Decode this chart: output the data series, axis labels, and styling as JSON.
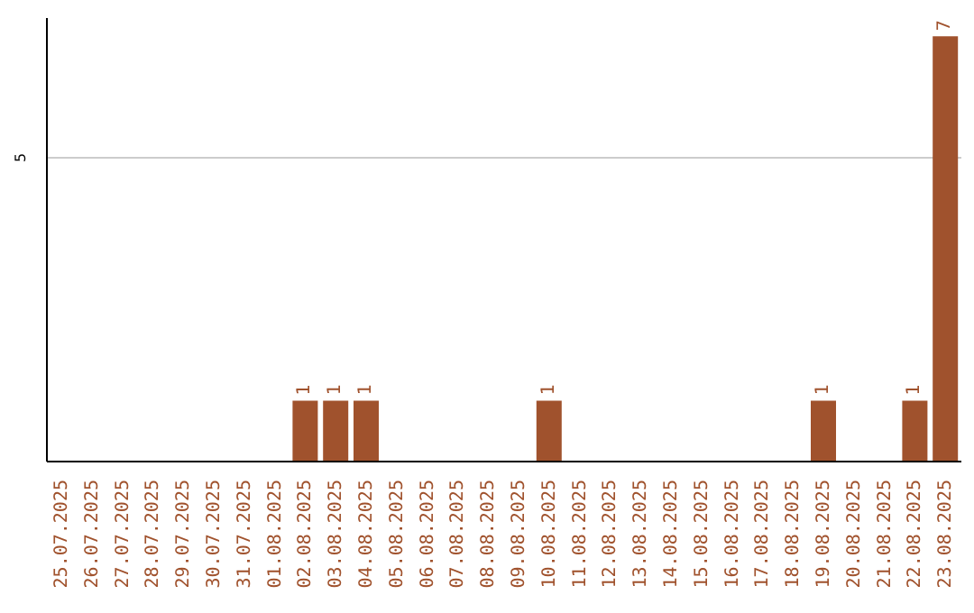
{
  "chart_data": {
    "type": "bar",
    "categories": [
      "25.07.2025",
      "26.07.2025",
      "27.07.2025",
      "28.07.2025",
      "29.07.2025",
      "30.07.2025",
      "31.07.2025",
      "01.08.2025",
      "02.08.2025",
      "03.08.2025",
      "04.08.2025",
      "05.08.2025",
      "06.08.2025",
      "07.08.2025",
      "08.08.2025",
      "09.08.2025",
      "10.08.2025",
      "11.08.2025",
      "12.08.2025",
      "13.08.2025",
      "14.08.2025",
      "15.08.2025",
      "16.08.2025",
      "17.08.2025",
      "18.08.2025",
      "19.08.2025",
      "20.08.2025",
      "21.08.2025",
      "22.08.2025",
      "23.08.2025"
    ],
    "values": [
      0,
      0,
      0,
      0,
      0,
      0,
      0,
      0,
      1,
      1,
      1,
      0,
      0,
      0,
      0,
      0,
      1,
      0,
      0,
      0,
      0,
      0,
      0,
      0,
      0,
      1,
      0,
      0,
      1,
      7
    ],
    "value_labels": [
      null,
      null,
      null,
      null,
      null,
      null,
      null,
      null,
      "1",
      "1",
      "1",
      null,
      null,
      null,
      null,
      null,
      "1",
      null,
      null,
      null,
      null,
      null,
      null,
      null,
      null,
      "1",
      null,
      null,
      "1",
      "7"
    ],
    "color": "#a0522d",
    "ylim": [
      0,
      7.3
    ],
    "yticks": [
      5
    ],
    "grid": "y"
  }
}
